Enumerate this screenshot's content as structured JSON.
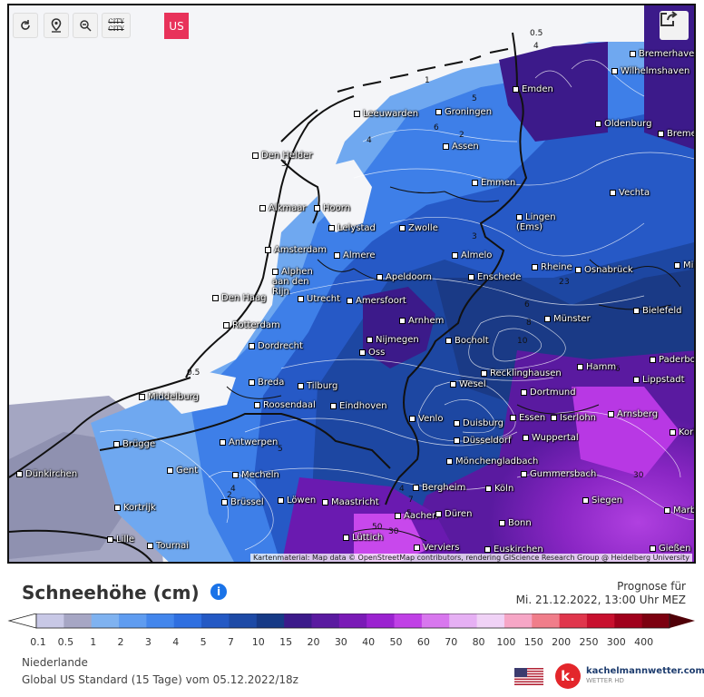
{
  "map": {
    "controls": {
      "reload_icon": "reload-icon",
      "location_icon": "location-pin-icon",
      "zoom_icon": "zoom-out-icon",
      "city_toggle": "CITY\nCITY",
      "model_badge": "US",
      "share_icon": "share-icon"
    },
    "cities": [
      {
        "name": "Bremerhaven"
      },
      {
        "name": "Wilhelmshaven"
      },
      {
        "name": "Emden"
      },
      {
        "name": "Leeuwarden"
      },
      {
        "name": "Groningen"
      },
      {
        "name": "Oldenburg"
      },
      {
        "name": "Bremen"
      },
      {
        "name": "Assen"
      },
      {
        "name": "Den Helder"
      },
      {
        "name": "Emmen"
      },
      {
        "name": "Vechta"
      },
      {
        "name": "Hoorn"
      },
      {
        "name": "Alkmaar"
      },
      {
        "name": "Lelystad"
      },
      {
        "name": "Zwolle"
      },
      {
        "name": "Lingen (Ems)"
      },
      {
        "name": "Amsterdam"
      },
      {
        "name": "Almere"
      },
      {
        "name": "Almelo"
      },
      {
        "name": "Rheine"
      },
      {
        "name": "Osnabrück"
      },
      {
        "name": "Minden"
      },
      {
        "name": "Alphen aan den Rijn"
      },
      {
        "name": "Apeldoorn"
      },
      {
        "name": "Enschede"
      },
      {
        "name": "Den Haag"
      },
      {
        "name": "Utrecht"
      },
      {
        "name": "Amersfoort"
      },
      {
        "name": "Bielefeld"
      },
      {
        "name": "Rotterdam"
      },
      {
        "name": "Arnhem"
      },
      {
        "name": "Münster"
      },
      {
        "name": "Dordrecht"
      },
      {
        "name": "Nijmegen"
      },
      {
        "name": "Bocholt"
      },
      {
        "name": "Oss"
      },
      {
        "name": "Paderborn"
      },
      {
        "name": "Hamm"
      },
      {
        "name": "Recklinghausen"
      },
      {
        "name": "Breda"
      },
      {
        "name": "Tilburg"
      },
      {
        "name": "Lippstadt"
      },
      {
        "name": "Middelburg"
      },
      {
        "name": "Roosendaal"
      },
      {
        "name": "Wesel"
      },
      {
        "name": "Dortmund"
      },
      {
        "name": "Eindhoven"
      },
      {
        "name": "Arnsberg"
      },
      {
        "name": "Venlo"
      },
      {
        "name": "Essen"
      },
      {
        "name": "Iserlohn"
      },
      {
        "name": "Duisburg"
      },
      {
        "name": "Brügge"
      },
      {
        "name": "Antwerpen"
      },
      {
        "name": "Düsseldorf"
      },
      {
        "name": "Wuppertal"
      },
      {
        "name": "Korbach"
      },
      {
        "name": "Gent"
      },
      {
        "name": "Mönchengladbach"
      },
      {
        "name": "Dünkirchen"
      },
      {
        "name": "Mecheln"
      },
      {
        "name": "Gummersbach"
      },
      {
        "name": "Bergheim"
      },
      {
        "name": "Köln"
      },
      {
        "name": "Brüssel"
      },
      {
        "name": "Löwen"
      },
      {
        "name": "Maastricht"
      },
      {
        "name": "Siegen"
      },
      {
        "name": "Kortrijk"
      },
      {
        "name": "Aachen"
      },
      {
        "name": "Düren"
      },
      {
        "name": "Bonn"
      },
      {
        "name": "Marburg"
      },
      {
        "name": "Lille"
      },
      {
        "name": "Tournai"
      },
      {
        "name": "Lüttich"
      },
      {
        "name": "Verviers"
      },
      {
        "name": "Euskirchen"
      },
      {
        "name": "Gießen"
      }
    ],
    "isolines": [
      "0.5",
      "4",
      "1",
      "5",
      "4",
      "6",
      "2",
      "3",
      "2",
      "3",
      "0.5",
      "5",
      "4",
      "6",
      "8",
      "10",
      "30",
      "3",
      "2",
      "4",
      "7",
      "6",
      "50",
      "30",
      "5"
    ],
    "attribution": "Kartenmaterial: Map data © OpenStreetMap contributors, rendering GIScience Research Group @ Heidelberg University"
  },
  "legend": {
    "title": "Schneehöhe (cm)",
    "forecast_label": "Prognose für",
    "forecast_value": "Mi. 21.12.2022, 13:00 Uhr MEZ",
    "ticks": [
      "0.1",
      "0.5",
      "1",
      "2",
      "3",
      "4",
      "5",
      "7",
      "10",
      "15",
      "20",
      "30",
      "40",
      "50",
      "60",
      "70",
      "80",
      "100",
      "150",
      "200",
      "250",
      "300",
      "400"
    ],
    "colors": [
      "#c8c8e6",
      "#a6a6c4",
      "#7fb2f0",
      "#5f9cf0",
      "#4386ec",
      "#2f6fe0",
      "#2459c4",
      "#1d4aa6",
      "#173a86",
      "#3c1a8a",
      "#5a1aa0",
      "#7a1ab6",
      "#9b22d0",
      "#c040e6",
      "#d877ee",
      "#e6b0f4",
      "#f0d2f6",
      "#f6a6c6",
      "#f07d8a",
      "#e0364c",
      "#c8102e",
      "#a0001c",
      "#7c0010",
      "#500008"
    ]
  },
  "footer": {
    "region": "Niederlande",
    "model": "Global US Standard  (15 Tage)  vom 05.12.2022/18z",
    "brand_name": "kachelmannwetter.com",
    "brand_sub": "WETTER HD",
    "brand_logo": "k."
  }
}
